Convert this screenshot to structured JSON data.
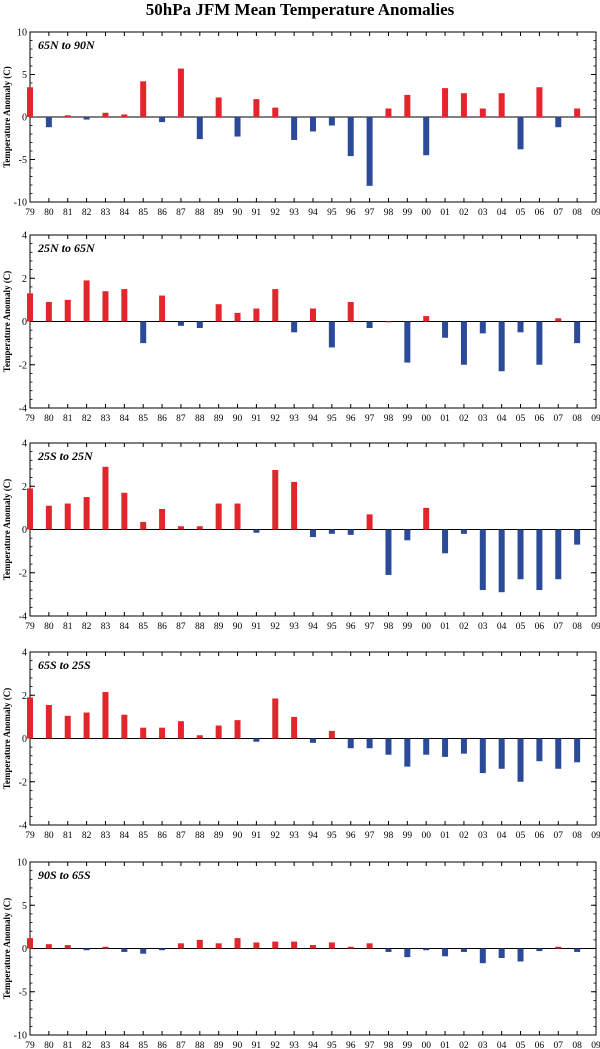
{
  "title": "50hPa JFM Mean Temperature Anomalies",
  "colors": {
    "positive": "#e3262b",
    "negative": "#2b4a97",
    "axis": "#000000"
  },
  "chart_data": [
    {
      "type": "bar",
      "region": "65N to 90N",
      "ylabel": "Temperature Anomaly (C)",
      "ylim": [
        -10,
        10
      ],
      "yticks": [
        10,
        5,
        0,
        -5,
        -10
      ],
      "x_tick_labels": [
        "79",
        "80",
        "81",
        "82",
        "83",
        "84",
        "85",
        "86",
        "87",
        "88",
        "89",
        "90",
        "91",
        "92",
        "93",
        "94",
        "95",
        "96",
        "97",
        "98",
        "99",
        "00",
        "01",
        "02",
        "03",
        "04",
        "05",
        "06",
        "07",
        "08",
        "09"
      ],
      "categories": [
        "79",
        "80",
        "81",
        "82",
        "83",
        "84",
        "85",
        "86",
        "87",
        "88",
        "89",
        "90",
        "91",
        "92",
        "93",
        "94",
        "95",
        "96",
        "97",
        "98",
        "99",
        "00",
        "01",
        "02",
        "03",
        "04",
        "05",
        "06",
        "07",
        "08"
      ],
      "values": [
        3.5,
        -1.2,
        0.2,
        -0.3,
        0.5,
        0.3,
        4.2,
        -0.6,
        5.7,
        -2.6,
        2.3,
        -2.3,
        2.1,
        1.1,
        -2.7,
        -1.7,
        -1.0,
        -4.6,
        -8.1,
        1.0,
        2.6,
        -4.5,
        3.4,
        2.8,
        1.0,
        2.8,
        -3.8,
        3.5,
        -1.2,
        1.0
      ]
    },
    {
      "type": "bar",
      "region": "25N to 65N",
      "ylabel": "Temperature Anomaly (C)",
      "ylim": [
        -4,
        4
      ],
      "yticks": [
        4,
        2,
        0,
        -2,
        -4
      ],
      "x_tick_labels": [
        "79",
        "80",
        "81",
        "82",
        "83",
        "84",
        "85",
        "86",
        "87",
        "88",
        "89",
        "90",
        "91",
        "92",
        "93",
        "94",
        "95",
        "96",
        "97",
        "98",
        "99",
        "00",
        "01",
        "02",
        "03",
        "04",
        "05",
        "06",
        "07",
        "08",
        "09"
      ],
      "categories": [
        "79",
        "80",
        "81",
        "82",
        "83",
        "84",
        "85",
        "86",
        "87",
        "88",
        "89",
        "90",
        "91",
        "92",
        "93",
        "94",
        "95",
        "96",
        "97",
        "98",
        "99",
        "00",
        "01",
        "02",
        "03",
        "04",
        "05",
        "06",
        "07",
        "08"
      ],
      "values": [
        1.3,
        0.9,
        1.0,
        1.9,
        1.4,
        1.5,
        -1.0,
        1.2,
        -0.2,
        -0.3,
        0.8,
        0.4,
        0.6,
        1.5,
        -0.5,
        0.6,
        -1.2,
        0.9,
        -0.3,
        0.0,
        -1.9,
        0.25,
        -0.75,
        -2.0,
        -0.55,
        -2.3,
        -0.5,
        -2.0,
        0.15,
        -1.0
      ]
    },
    {
      "type": "bar",
      "region": "25S to 25N",
      "ylabel": "Temperature Anomaly (C)",
      "ylim": [
        -4,
        4
      ],
      "yticks": [
        4,
        2,
        0,
        -2,
        -4
      ],
      "x_tick_labels": [
        "79",
        "80",
        "81",
        "82",
        "83",
        "84",
        "85",
        "86",
        "87",
        "88",
        "89",
        "90",
        "91",
        "92",
        "93",
        "94",
        "95",
        "96",
        "97",
        "98",
        "99",
        "00",
        "01",
        "02",
        "03",
        "04",
        "05",
        "06",
        "07",
        "08",
        "09"
      ],
      "categories": [
        "79",
        "80",
        "81",
        "82",
        "83",
        "84",
        "85",
        "86",
        "87",
        "88",
        "89",
        "90",
        "91",
        "92",
        "93",
        "94",
        "95",
        "96",
        "97",
        "98",
        "99",
        "00",
        "01",
        "02",
        "03",
        "04",
        "05",
        "06",
        "07",
        "08"
      ],
      "values": [
        1.9,
        1.1,
        1.2,
        1.5,
        2.9,
        1.7,
        0.35,
        0.95,
        0.15,
        0.15,
        1.2,
        1.2,
        -0.15,
        2.75,
        2.2,
        -0.35,
        -0.2,
        -0.25,
        0.7,
        -2.1,
        -0.5,
        1.0,
        -1.1,
        -0.2,
        -2.8,
        -2.9,
        -2.3,
        -2.8,
        -2.3,
        -0.7
      ]
    },
    {
      "type": "bar",
      "region": "65S to 25S",
      "ylabel": "Temperature Anomaly (C)",
      "ylim": [
        -4,
        4
      ],
      "yticks": [
        4,
        2,
        0,
        -2,
        -4
      ],
      "x_tick_labels": [
        "79",
        "80",
        "81",
        "82",
        "83",
        "84",
        "85",
        "86",
        "87",
        "88",
        "89",
        "90",
        "91",
        "92",
        "93",
        "94",
        "95",
        "96",
        "97",
        "98",
        "99",
        "00",
        "01",
        "02",
        "03",
        "04",
        "05",
        "06",
        "07",
        "08",
        "09"
      ],
      "categories": [
        "79",
        "80",
        "81",
        "82",
        "83",
        "84",
        "85",
        "86",
        "87",
        "88",
        "89",
        "90",
        "91",
        "92",
        "93",
        "94",
        "95",
        "96",
        "97",
        "98",
        "99",
        "00",
        "01",
        "02",
        "03",
        "04",
        "05",
        "06",
        "07",
        "08"
      ],
      "values": [
        1.9,
        1.55,
        1.05,
        1.2,
        2.15,
        1.1,
        0.5,
        0.5,
        0.8,
        0.15,
        0.6,
        0.85,
        -0.15,
        1.85,
        1.0,
        -0.2,
        0.35,
        -0.45,
        -0.45,
        -0.75,
        -1.3,
        -0.75,
        -0.85,
        -0.7,
        -1.6,
        -1.4,
        -2.0,
        -1.05,
        -1.4,
        -1.1
      ]
    },
    {
      "type": "bar",
      "region": "90S to 65S",
      "ylabel": "Temperature Anomaly (C)",
      "ylim": [
        -10,
        10
      ],
      "yticks": [
        10,
        5,
        0,
        -5,
        -10
      ],
      "x_tick_labels": [
        "79",
        "80",
        "81",
        "82",
        "83",
        "84",
        "85",
        "86",
        "87",
        "88",
        "89",
        "90",
        "91",
        "92",
        "93",
        "94",
        "95",
        "96",
        "97",
        "98",
        "99",
        "00",
        "01",
        "02",
        "03",
        "04",
        "05",
        "06",
        "07",
        "08",
        "09"
      ],
      "categories": [
        "79",
        "80",
        "81",
        "82",
        "83",
        "84",
        "85",
        "86",
        "87",
        "88",
        "89",
        "90",
        "91",
        "92",
        "93",
        "94",
        "95",
        "96",
        "97",
        "98",
        "99",
        "00",
        "01",
        "02",
        "03",
        "04",
        "05",
        "06",
        "07",
        "08"
      ],
      "values": [
        1.2,
        0.5,
        0.4,
        -0.2,
        0.2,
        -0.4,
        -0.6,
        -0.2,
        0.6,
        1.0,
        0.6,
        1.2,
        0.7,
        0.8,
        0.8,
        0.4,
        0.7,
        0.2,
        0.6,
        -0.4,
        -1.0,
        -0.2,
        -0.9,
        -0.4,
        -1.7,
        -1.1,
        -1.5,
        -0.3,
        0.2,
        -0.4
      ]
    }
  ]
}
